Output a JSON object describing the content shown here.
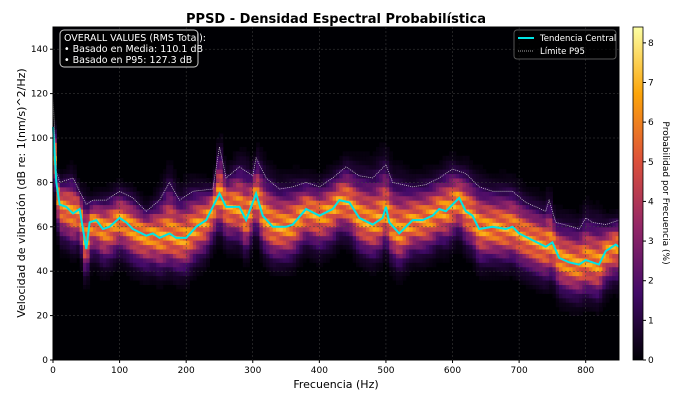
{
  "chart_data": {
    "type": "heatmap",
    "title": "PPSD - Densidad Espectral Probabilística",
    "xlabel": "Frecuencia (Hz)",
    "ylabel": "Velocidad de vibración (dB re: 1(nm/s)^2/Hz)",
    "xlim": [
      0,
      850
    ],
    "ylim": [
      0,
      150
    ],
    "xticks": [
      0,
      100,
      200,
      300,
      400,
      500,
      600,
      700,
      800
    ],
    "yticks": [
      0,
      20,
      40,
      60,
      80,
      100,
      120,
      140
    ],
    "grid": true,
    "colorbar": {
      "label": "Probabilidad por Frecuencia (%)",
      "range": [
        0,
        8.4
      ],
      "ticks": [
        0,
        1,
        2,
        3,
        4,
        5,
        6,
        7,
        8
      ],
      "colormap": [
        "#000004",
        "#420a68",
        "#932667",
        "#dd513a",
        "#fca50a",
        "#fcffa4"
      ]
    },
    "distribution": {
      "sigma_db": 6,
      "peak_prob": 7.2
    },
    "legend": {
      "placement": "top-right",
      "entries": [
        {
          "label": "Tendencia Central",
          "color": "#00e5e5",
          "style": "solid"
        },
        {
          "label": "Límite P95",
          "color": "#dddddd",
          "style": "dotted"
        }
      ]
    },
    "annotation": {
      "title": "OVERALL VALUES (RMS Total):",
      "lines": [
        "• Basado en Media: 110.1 dB",
        "• Basado en P95:  127.3 dB"
      ]
    },
    "series": [
      {
        "name": "Tendencia Central",
        "x": [
          0,
          5,
          10,
          20,
          30,
          40,
          50,
          55,
          65,
          75,
          85,
          100,
          110,
          120,
          140,
          150,
          160,
          175,
          185,
          200,
          215,
          230,
          250,
          260,
          280,
          290,
          305,
          315,
          330,
          350,
          360,
          380,
          400,
          420,
          430,
          445,
          460,
          480,
          495,
          500,
          505,
          520,
          540,
          555,
          570,
          580,
          590,
          610,
          620,
          630,
          640,
          660,
          680,
          690,
          700,
          720,
          740,
          750,
          760,
          775,
          790,
          800,
          820,
          830,
          845,
          850
        ],
        "y": [
          105,
          80,
          70,
          69,
          66,
          68,
          50,
          62,
          63,
          59,
          60,
          64,
          62,
          59,
          56,
          57,
          55,
          57,
          55,
          55,
          60,
          63,
          75,
          69,
          69,
          63,
          75,
          65,
          60,
          60,
          61,
          68,
          65,
          68,
          72,
          71,
          64,
          61,
          64,
          69,
          62,
          57,
          63,
          63,
          65,
          68,
          67,
          73,
          67,
          65,
          59,
          60,
          59,
          60,
          57,
          54,
          51,
          53,
          46,
          44,
          43,
          45,
          43,
          49,
          52,
          51
        ]
      },
      {
        "name": "Límite P95",
        "x": [
          0,
          5,
          10,
          20,
          30,
          40,
          50,
          60,
          80,
          100,
          120,
          140,
          160,
          175,
          190,
          210,
          240,
          250,
          260,
          280,
          300,
          305,
          320,
          340,
          360,
          380,
          400,
          420,
          440,
          460,
          480,
          500,
          510,
          540,
          560,
          580,
          600,
          620,
          640,
          660,
          690,
          710,
          740,
          745,
          755,
          780,
          790,
          800,
          810,
          830,
          850
        ],
        "y": [
          120,
          85,
          80,
          81,
          82,
          76,
          70,
          72,
          72,
          76,
          73,
          67,
          72,
          80,
          72,
          76,
          77,
          96,
          82,
          87,
          83,
          91,
          82,
          77,
          78,
          80,
          78,
          82,
          87,
          83,
          82,
          88,
          80,
          78,
          79,
          82,
          86,
          84,
          78,
          76,
          76,
          71,
          67,
          72,
          62,
          60,
          59,
          64,
          62,
          61,
          63
        ]
      }
    ]
  }
}
